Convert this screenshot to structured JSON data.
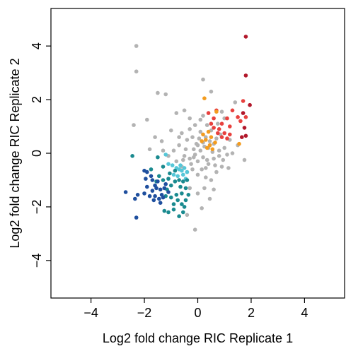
{
  "chart_data": {
    "type": "scatter",
    "xlabel": "Log2 fold change RIC Replicate 1",
    "ylabel": "Log2 fold change RIC Replicate 2",
    "xlim": [
      -5.5,
      5.5
    ],
    "ylim": [
      -5.4,
      5.4
    ],
    "x_ticks": [
      -4,
      -2,
      0,
      2,
      4
    ],
    "x_tick_labels": [
      "−4",
      "−2",
      "0",
      "2",
      "4"
    ],
    "y_ticks": [
      -4,
      -2,
      0,
      2,
      4
    ],
    "y_tick_labels": [
      "−4",
      "−2",
      "0",
      "2",
      "4"
    ],
    "grid": false,
    "colors": {
      "grey": "#b3b3b3",
      "dark_red": "#b2182b",
      "red": "#e8413e",
      "orange": "#f39c1f",
      "light_blue": "#56c7d8",
      "teal": "#1a8a8f",
      "dark_blue": "#1f4f9e"
    },
    "series": [
      {
        "color_key": "grey",
        "points": [
          [
            -2.3,
            4.0
          ],
          [
            -2.3,
            3.05
          ],
          [
            -1.5,
            2.25
          ],
          [
            -1.2,
            2.2
          ],
          [
            -2.4,
            1.05
          ],
          [
            -1.9,
            1.25
          ],
          [
            0.2,
            2.75
          ],
          [
            0.5,
            2.3
          ],
          [
            -0.5,
            1.6
          ],
          [
            -0.8,
            1.5
          ],
          [
            -0.3,
            1.3
          ],
          [
            -1.0,
            0.85
          ],
          [
            -1.6,
            0.6
          ],
          [
            -1.35,
            0.45
          ],
          [
            -1.8,
            0.15
          ],
          [
            -0.3,
            0.9
          ],
          [
            -0.1,
            1.05
          ],
          [
            0.2,
            1.4
          ],
          [
            -0.7,
            0.3
          ],
          [
            -0.4,
            0.5
          ],
          [
            -0.2,
            0.6
          ],
          [
            0.1,
            0.8
          ],
          [
            0.3,
            0.6
          ],
          [
            0.5,
            0.85
          ],
          [
            0.0,
            0.3
          ],
          [
            0.1,
            0.1
          ],
          [
            0.2,
            0.4
          ],
          [
            0.4,
            0.2
          ],
          [
            0.6,
            0.35
          ],
          [
            0.8,
            0.1
          ],
          [
            -0.5,
            -0.1
          ],
          [
            -0.3,
            -0.2
          ],
          [
            -0.1,
            -0.05
          ],
          [
            0.0,
            -0.3
          ],
          [
            0.2,
            -0.15
          ],
          [
            0.4,
            -0.4
          ],
          [
            0.6,
            -0.2
          ],
          [
            0.8,
            -0.1
          ],
          [
            1.0,
            0.2
          ],
          [
            1.1,
            -0.05
          ],
          [
            -0.8,
            -0.3
          ],
          [
            -0.6,
            -0.5
          ],
          [
            -0.4,
            -0.7
          ],
          [
            -0.2,
            -0.6
          ],
          [
            0.0,
            -0.8
          ],
          [
            0.3,
            -0.9
          ],
          [
            0.5,
            -1.0
          ],
          [
            0.7,
            -0.7
          ],
          [
            0.9,
            -0.5
          ],
          [
            1.2,
            0.5
          ],
          [
            1.5,
            0.3
          ],
          [
            1.0,
            1.3
          ],
          [
            1.4,
            1.9
          ],
          [
            0.9,
            1.55
          ],
          [
            -0.9,
            0.1
          ],
          [
            -1.1,
            -0.1
          ],
          [
            -0.7,
            0.6
          ],
          [
            0.25,
            -1.3
          ],
          [
            0.45,
            -1.7
          ],
          [
            0.0,
            -1.5
          ],
          [
            -0.3,
            -1.3
          ],
          [
            0.6,
            -1.35
          ],
          [
            0.15,
            -2.05
          ],
          [
            -0.4,
            -2.3
          ],
          [
            -0.1,
            -2.85
          ],
          [
            1.15,
            -0.55
          ],
          [
            0.35,
            1.05
          ],
          [
            -0.15,
            0.15
          ],
          [
            0.05,
            0.55
          ],
          [
            0.3,
            -0.55
          ],
          [
            0.55,
            0.05
          ],
          [
            0.7,
            0.55
          ],
          [
            -0.45,
            0.15
          ],
          [
            -0.25,
            -0.4
          ],
          [
            0.15,
            -0.6
          ],
          [
            0.45,
            0.45
          ],
          [
            0.85,
            0.7
          ],
          [
            0.95,
            -0.25
          ],
          [
            -0.55,
            -0.25
          ],
          [
            0.25,
            0.25
          ],
          [
            -0.05,
            0.35
          ],
          [
            0.65,
            -0.45
          ],
          [
            0.35,
            -0.25
          ],
          [
            -0.15,
            -0.15
          ],
          [
            1.75,
            -0.25
          ],
          [
            1.3,
            0.0
          ],
          [
            0.75,
            1.1
          ],
          [
            0.1,
            1.25
          ],
          [
            -0.6,
            0.75
          ],
          [
            -1.3,
            0.1
          ]
        ]
      },
      {
        "color_key": "dark_red",
        "points": [
          [
            1.8,
            4.35
          ],
          [
            1.8,
            2.9
          ],
          [
            1.95,
            1.8
          ],
          [
            1.7,
            1.5
          ],
          [
            1.75,
            0.95
          ],
          [
            1.65,
            0.6
          ],
          [
            1.8,
            0.65
          ]
        ]
      },
      {
        "color_key": "red",
        "points": [
          [
            0.4,
            1.5
          ],
          [
            0.6,
            1.3
          ],
          [
            0.7,
            1.6
          ],
          [
            0.9,
            1.1
          ],
          [
            1.1,
            1.3
          ],
          [
            1.2,
            1.0
          ],
          [
            1.3,
            1.6
          ],
          [
            1.5,
            1.35
          ],
          [
            1.7,
            1.95
          ],
          [
            1.6,
            1.2
          ],
          [
            1.8,
            1.35
          ],
          [
            0.8,
            0.9
          ],
          [
            1.0,
            0.75
          ],
          [
            1.2,
            0.7
          ],
          [
            0.6,
            0.95
          ],
          [
            0.9,
            0.6
          ],
          [
            1.1,
            0.55
          ],
          [
            0.5,
            1.1
          ],
          [
            0.75,
            0.75
          ]
        ]
      },
      {
        "color_key": "orange",
        "points": [
          [
            0.25,
            2.05
          ],
          [
            0.7,
            1.55
          ],
          [
            0.5,
            0.6
          ],
          [
            0.3,
            0.5
          ],
          [
            0.2,
            0.7
          ],
          [
            0.45,
            0.3
          ],
          [
            0.65,
            0.4
          ],
          [
            0.35,
            0.2
          ],
          [
            0.55,
            0.15
          ],
          [
            1.55,
            0.35
          ],
          [
            0.15,
            0.45
          ],
          [
            0.4,
            0.8
          ]
        ]
      },
      {
        "color_key": "light_blue",
        "points": [
          [
            -1.2,
            -0.05
          ],
          [
            -0.95,
            -0.45
          ],
          [
            -0.8,
            -0.55
          ],
          [
            -0.7,
            -0.6
          ],
          [
            -0.6,
            -0.65
          ],
          [
            -0.5,
            -0.55
          ],
          [
            -0.4,
            -0.7
          ],
          [
            -1.1,
            -0.4
          ],
          [
            -0.9,
            -0.8
          ],
          [
            -0.75,
            -0.85
          ],
          [
            -0.55,
            -0.8
          ],
          [
            -0.45,
            -0.95
          ],
          [
            -0.65,
            -0.45
          ]
        ]
      },
      {
        "color_key": "teal",
        "points": [
          [
            -2.45,
            -0.1
          ],
          [
            -1.5,
            -0.15
          ],
          [
            -1.75,
            -0.6
          ],
          [
            -1.45,
            -0.85
          ],
          [
            -1.3,
            -1.0
          ],
          [
            -1.1,
            -0.95
          ],
          [
            -1.0,
            -1.2
          ],
          [
            -0.85,
            -1.05
          ],
          [
            -0.7,
            -1.0
          ],
          [
            -0.55,
            -1.05
          ],
          [
            -0.45,
            -1.3
          ],
          [
            -0.6,
            -1.5
          ],
          [
            -0.8,
            -1.55
          ],
          [
            -1.0,
            -1.65
          ],
          [
            -1.2,
            -1.6
          ],
          [
            -0.9,
            -1.9
          ],
          [
            -0.6,
            -1.9
          ],
          [
            -0.45,
            -1.75
          ],
          [
            -0.35,
            -1.55
          ],
          [
            -1.25,
            -2.15
          ],
          [
            -0.9,
            -2.1
          ],
          [
            -0.5,
            -2.0
          ],
          [
            -0.7,
            -2.35
          ],
          [
            -1.1,
            -2.2
          ],
          [
            -1.3,
            -0.5
          ],
          [
            -0.85,
            -0.65
          ],
          [
            -1.55,
            -1.05
          ],
          [
            -1.15,
            -1.35
          ],
          [
            -0.75,
            -1.75
          ],
          [
            -0.55,
            -2.2
          ],
          [
            -1.05,
            -0.75
          ],
          [
            -0.65,
            -1.25
          ],
          [
            -0.4,
            -1.0
          ]
        ]
      },
      {
        "color_key": "dark_blue",
        "points": [
          [
            -2.7,
            -1.45
          ],
          [
            -2.0,
            -0.65
          ],
          [
            -1.9,
            -0.7
          ],
          [
            -1.7,
            -1.0
          ],
          [
            -1.6,
            -1.2
          ],
          [
            -1.5,
            -1.05
          ],
          [
            -1.4,
            -1.35
          ],
          [
            -1.35,
            -1.55
          ],
          [
            -1.25,
            -1.3
          ],
          [
            -1.7,
            -1.4
          ],
          [
            -1.9,
            -1.25
          ],
          [
            -2.0,
            -1.5
          ],
          [
            -2.25,
            -1.55
          ],
          [
            -1.6,
            -1.6
          ],
          [
            -1.8,
            -1.6
          ],
          [
            -1.4,
            -1.85
          ],
          [
            -1.3,
            -1.65
          ],
          [
            -2.35,
            -1.7
          ],
          [
            -2.3,
            -2.4
          ],
          [
            -1.55,
            -1.3
          ],
          [
            -1.1,
            -1.45
          ],
          [
            -1.75,
            -0.85
          ],
          [
            -1.45,
            -1.7
          ],
          [
            -1.2,
            -1.15
          ],
          [
            -1.95,
            -0.95
          ],
          [
            -1.65,
            -1.75
          ]
        ]
      }
    ]
  }
}
